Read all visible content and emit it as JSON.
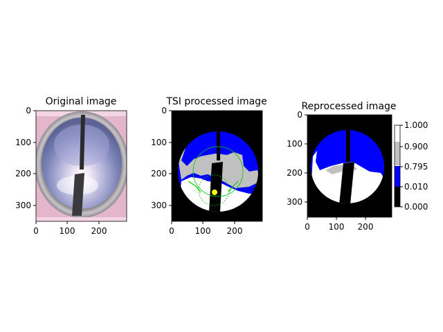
{
  "figure": {
    "panels": [
      {
        "title": "Original image",
        "xticks": [
          "0",
          "100",
          "200"
        ],
        "yticks": [
          "0",
          "100",
          "200",
          "300"
        ]
      },
      {
        "title": "TSI processed image",
        "xticks": [
          "0",
          "100",
          "200"
        ],
        "yticks": [
          "0",
          "100",
          "200",
          "300"
        ]
      },
      {
        "title": "Reprocessed image",
        "xticks": [
          "0",
          "100",
          "200"
        ],
        "yticks": [
          "0",
          "100",
          "200",
          "300"
        ]
      }
    ],
    "colorbar": {
      "ticks": [
        "1.000",
        "0.900",
        "0.795",
        "0.010",
        "0.000"
      ],
      "bands": [
        {
          "from": 0.0,
          "to": 0.01,
          "color": "#000000"
        },
        {
          "from": 0.01,
          "to": 0.795,
          "color": "#0000ff"
        },
        {
          "from": 0.795,
          "to": 0.9,
          "color": "#c0c0c0"
        },
        {
          "from": 0.9,
          "to": 1.0,
          "color": "#ffffff"
        }
      ]
    }
  },
  "chart_data": [
    {
      "type": "heatmap",
      "title": "Original image",
      "xlim": [
        0,
        288
      ],
      "ylim": [
        352,
        0
      ],
      "xticks": [
        0,
        100,
        200
      ],
      "yticks": [
        0,
        100,
        200,
        300
      ],
      "content": "sky camera photograph"
    },
    {
      "type": "heatmap",
      "title": "TSI processed image",
      "xlim": [
        0,
        288
      ],
      "ylim": [
        352,
        0
      ],
      "xticks": [
        0,
        100,
        200
      ],
      "yticks": [
        0,
        100,
        200,
        300
      ],
      "classes": {
        "black": "mask",
        "blue": "clear sky",
        "gray": "thin cloud",
        "white": "opaque cloud",
        "yellow": "sun"
      }
    },
    {
      "type": "heatmap",
      "title": "Reprocessed image",
      "xlim": [
        0,
        288
      ],
      "ylim": [
        352,
        0
      ],
      "xticks": [
        0,
        100,
        200
      ],
      "yticks": [
        0,
        100,
        200,
        300
      ],
      "colorbar_ticks": [
        1.0,
        0.9,
        0.795,
        0.01,
        0.0
      ]
    }
  ],
  "colors": {
    "mask": "#000000",
    "clear_sky": "#0000ff",
    "thin_cloud": "#c0c0c0",
    "opaque_cloud": "#ffffff",
    "sun": "#ffff00",
    "overlay": "#00c800",
    "photo_border": "#e4b6cc",
    "photo_sky": "#7a82b6"
  }
}
